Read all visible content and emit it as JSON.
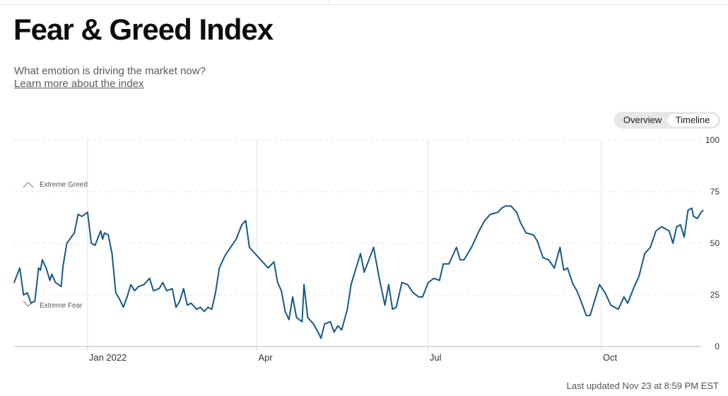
{
  "header": {
    "title": "Fear & Greed Index",
    "subtitle": "What emotion is driving the market now?",
    "learn_more": "Learn more about the index"
  },
  "toggle": {
    "overview": "Overview",
    "timeline": "Timeline",
    "active": "Timeline"
  },
  "footer": {
    "updated": "Last updated Nov 23 at 8:59 PM EST"
  },
  "colors": {
    "line": "#15598a",
    "grid": "#e4e4e4",
    "axis": "#cfcfcf"
  },
  "chart_data": {
    "type": "line",
    "title": "",
    "xlabel": "",
    "ylabel": "",
    "ylim": [
      0,
      100
    ],
    "yticks": [
      0,
      25,
      50,
      75,
      100
    ],
    "xlim": [
      "2021-11-23",
      "2022-11-23"
    ],
    "xticks": [
      {
        "date": "2022-01-01",
        "label": "Jan 2022"
      },
      {
        "date": "2022-04-01",
        "label": "Apr"
      },
      {
        "date": "2022-07-01",
        "label": "Jul"
      },
      {
        "date": "2022-10-01",
        "label": "Oct"
      }
    ],
    "annotations": [
      {
        "label": "Extreme Greed",
        "value": 75,
        "icon": "chevron-up-icon"
      },
      {
        "label": "Extreme Fear",
        "value": 25,
        "icon": "chevron-down-icon"
      }
    ],
    "series": [
      {
        "points": [
          [
            "2021-11-23",
            31
          ],
          [
            "2021-11-26",
            38
          ],
          [
            "2021-11-28",
            25
          ],
          [
            "2021-11-30",
            26
          ],
          [
            "2021-12-02",
            21
          ],
          [
            "2021-12-04",
            22
          ],
          [
            "2021-12-06",
            38
          ],
          [
            "2021-12-07",
            37
          ],
          [
            "2021-12-08",
            42
          ],
          [
            "2021-12-10",
            38
          ],
          [
            "2021-12-12",
            32
          ],
          [
            "2021-12-13",
            35
          ],
          [
            "2021-12-15",
            31
          ],
          [
            "2021-12-18",
            29
          ],
          [
            "2021-12-19",
            39
          ],
          [
            "2021-12-21",
            50
          ],
          [
            "2021-12-25",
            55
          ],
          [
            "2021-12-27",
            64
          ],
          [
            "2021-12-29",
            63
          ],
          [
            "2022-01-01",
            65
          ],
          [
            "2022-01-03",
            50
          ],
          [
            "2022-01-05",
            49
          ],
          [
            "2022-01-08",
            56
          ],
          [
            "2022-01-09",
            52
          ],
          [
            "2022-01-10",
            55
          ],
          [
            "2022-01-12",
            54
          ],
          [
            "2022-01-14",
            45
          ],
          [
            "2022-01-16",
            26
          ],
          [
            "2022-01-18",
            23
          ],
          [
            "2022-01-20",
            19
          ],
          [
            "2022-01-22",
            24
          ],
          [
            "2022-01-24",
            30
          ],
          [
            "2022-01-26",
            27
          ],
          [
            "2022-01-28",
            29
          ],
          [
            "2022-01-31",
            30
          ],
          [
            "2022-02-03",
            33
          ],
          [
            "2022-02-05",
            27
          ],
          [
            "2022-02-08",
            28
          ],
          [
            "2022-02-10",
            31
          ],
          [
            "2022-02-12",
            27
          ],
          [
            "2022-02-15",
            28
          ],
          [
            "2022-02-17",
            19
          ],
          [
            "2022-02-19",
            22
          ],
          [
            "2022-02-21",
            28
          ],
          [
            "2022-02-23",
            20
          ],
          [
            "2022-02-25",
            21
          ],
          [
            "2022-02-28",
            18
          ],
          [
            "2022-03-02",
            19
          ],
          [
            "2022-03-04",
            17
          ],
          [
            "2022-03-06",
            19
          ],
          [
            "2022-03-08",
            18
          ],
          [
            "2022-03-10",
            26
          ],
          [
            "2022-03-12",
            38
          ],
          [
            "2022-03-15",
            44
          ],
          [
            "2022-03-18",
            48
          ],
          [
            "2022-03-21",
            52
          ],
          [
            "2022-03-24",
            59
          ],
          [
            "2022-03-26",
            61
          ],
          [
            "2022-03-28",
            48
          ],
          [
            "2022-04-01",
            44
          ],
          [
            "2022-04-04",
            41
          ],
          [
            "2022-04-07",
            38
          ],
          [
            "2022-04-10",
            41
          ],
          [
            "2022-04-12",
            31
          ],
          [
            "2022-04-14",
            27
          ],
          [
            "2022-04-16",
            17
          ],
          [
            "2022-04-18",
            13
          ],
          [
            "2022-04-20",
            24
          ],
          [
            "2022-04-22",
            14
          ],
          [
            "2022-04-25",
            12
          ],
          [
            "2022-04-26",
            30
          ],
          [
            "2022-04-28",
            14
          ],
          [
            "2022-05-01",
            11
          ],
          [
            "2022-05-04",
            6
          ],
          [
            "2022-05-05",
            4
          ],
          [
            "2022-05-07",
            11
          ],
          [
            "2022-05-10",
            12
          ],
          [
            "2022-05-12",
            7
          ],
          [
            "2022-05-14",
            10
          ],
          [
            "2022-05-16",
            8
          ],
          [
            "2022-05-19",
            18
          ],
          [
            "2022-05-21",
            30
          ],
          [
            "2022-05-23",
            36
          ],
          [
            "2022-05-26",
            45
          ],
          [
            "2022-05-28",
            36
          ],
          [
            "2022-06-02",
            48
          ],
          [
            "2022-06-05",
            33
          ],
          [
            "2022-06-08",
            20
          ],
          [
            "2022-06-10",
            30
          ],
          [
            "2022-06-12",
            18
          ],
          [
            "2022-06-14",
            19
          ],
          [
            "2022-06-17",
            31
          ],
          [
            "2022-06-20",
            30
          ],
          [
            "2022-06-23",
            26
          ],
          [
            "2022-06-26",
            24
          ],
          [
            "2022-06-28",
            24
          ],
          [
            "2022-07-01",
            31
          ],
          [
            "2022-07-04",
            33
          ],
          [
            "2022-07-07",
            32
          ],
          [
            "2022-07-09",
            40
          ],
          [
            "2022-07-12",
            40
          ],
          [
            "2022-07-16",
            48
          ],
          [
            "2022-07-18",
            42
          ],
          [
            "2022-07-20",
            42
          ],
          [
            "2022-07-24",
            48
          ],
          [
            "2022-07-28",
            56
          ],
          [
            "2022-07-31",
            61
          ],
          [
            "2022-08-03",
            64
          ],
          [
            "2022-08-07",
            65
          ],
          [
            "2022-08-09",
            67
          ],
          [
            "2022-08-11",
            68
          ],
          [
            "2022-08-14",
            68
          ],
          [
            "2022-08-17",
            65
          ],
          [
            "2022-08-19",
            60
          ],
          [
            "2022-08-22",
            55
          ],
          [
            "2022-08-26",
            54
          ],
          [
            "2022-08-28",
            51
          ],
          [
            "2022-08-31",
            43
          ],
          [
            "2022-09-03",
            42
          ],
          [
            "2022-09-06",
            38
          ],
          [
            "2022-09-09",
            48
          ],
          [
            "2022-09-11",
            37
          ],
          [
            "2022-09-13",
            38
          ],
          [
            "2022-09-16",
            30
          ],
          [
            "2022-09-18",
            27
          ],
          [
            "2022-09-21",
            20
          ],
          [
            "2022-09-23",
            15
          ],
          [
            "2022-09-25",
            15
          ],
          [
            "2022-09-27",
            21
          ],
          [
            "2022-09-30",
            30
          ],
          [
            "2022-10-03",
            26
          ],
          [
            "2022-10-06",
            20
          ],
          [
            "2022-10-08",
            19
          ],
          [
            "2022-10-10",
            18
          ],
          [
            "2022-10-13",
            24
          ],
          [
            "2022-10-15",
            21
          ],
          [
            "2022-10-18",
            28
          ],
          [
            "2022-10-21",
            34
          ],
          [
            "2022-10-24",
            45
          ],
          [
            "2022-10-27",
            48
          ],
          [
            "2022-10-30",
            56
          ],
          [
            "2022-11-02",
            58
          ],
          [
            "2022-11-06",
            56
          ],
          [
            "2022-11-08",
            50
          ],
          [
            "2022-11-10",
            58
          ],
          [
            "2022-11-12",
            59
          ],
          [
            "2022-11-14",
            53
          ],
          [
            "2022-11-16",
            66
          ],
          [
            "2022-11-18",
            67
          ],
          [
            "2022-11-19",
            63
          ],
          [
            "2022-11-21",
            62
          ],
          [
            "2022-11-23",
            65
          ],
          [
            "2022-11-24",
            66
          ]
        ]
      }
    ]
  }
}
